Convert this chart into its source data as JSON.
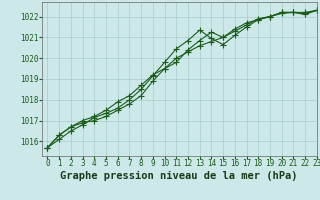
{
  "title": "Graphe pression niveau de la mer (hPa)",
  "bg_color": "#cce8e8",
  "grid_color": "#aacaca",
  "line_color": "#1a5c1a",
  "xlim": [
    -0.5,
    23
  ],
  "ylim": [
    1015.3,
    1022.7
  ],
  "yticks": [
    1016,
    1017,
    1018,
    1019,
    1020,
    1021,
    1022
  ],
  "xticks": [
    0,
    1,
    2,
    3,
    4,
    5,
    6,
    7,
    8,
    9,
    10,
    11,
    12,
    13,
    14,
    15,
    16,
    17,
    18,
    19,
    20,
    21,
    22,
    23
  ],
  "series": [
    [
      1015.7,
      1016.3,
      1016.7,
      1016.9,
      1017.0,
      1017.2,
      1017.5,
      1017.8,
      1018.2,
      1018.9,
      1019.5,
      1020.0,
      1020.3,
      1020.6,
      1020.8,
      1021.0,
      1021.3,
      1021.6,
      1021.9,
      1022.0,
      1022.2,
      1022.2,
      1022.2,
      1022.3
    ],
    [
      1015.7,
      1016.3,
      1016.7,
      1017.0,
      1017.2,
      1017.5,
      1017.9,
      1018.2,
      1018.7,
      1019.2,
      1019.5,
      1019.8,
      1020.4,
      1020.85,
      1021.25,
      1021.0,
      1021.4,
      1021.7,
      1021.85,
      1022.0,
      1022.2,
      1022.2,
      1022.15,
      1022.3
    ],
    [
      1015.7,
      1016.1,
      1016.5,
      1016.8,
      1017.15,
      1017.35,
      1017.6,
      1018.0,
      1018.5,
      1019.15,
      1019.8,
      1020.45,
      1020.85,
      1021.35,
      1020.95,
      1020.65,
      1021.1,
      1021.5,
      1021.85,
      1022.0,
      1022.15,
      1022.2,
      1022.1,
      1022.3
    ]
  ],
  "marker": "+",
  "markersize": 4,
  "linewidth": 0.8,
  "title_fontsize": 7.5,
  "tick_fontsize": 5.5,
  "ylabel_color": "#1a5c1a",
  "title_color": "#1a3a1a"
}
